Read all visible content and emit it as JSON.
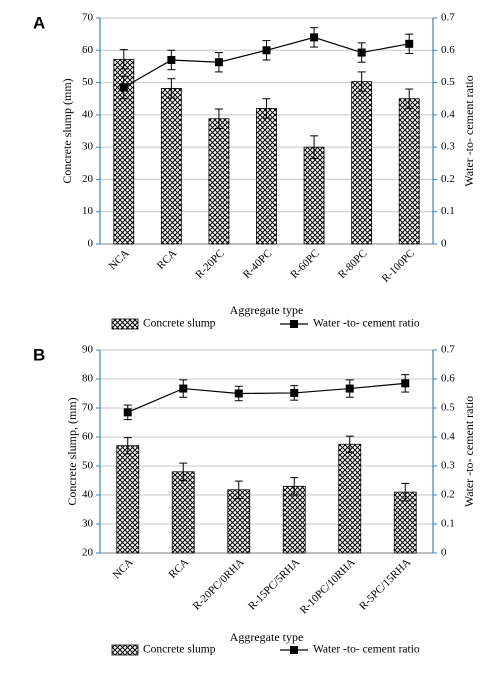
{
  "chart_data": [
    {
      "panel": "A",
      "type": "bar",
      "title": "",
      "xlabel": "Aggregate type",
      "ylabel": "Concrete slump (mm)",
      "y2label": "Water -to- cement ratio",
      "categories": [
        "NCA",
        "RCA",
        "R-20PC",
        "R-40PC",
        "R-60PC",
        "R-80PC",
        "R-100PC"
      ],
      "ylim": [
        0,
        70
      ],
      "yticks": [
        0,
        10,
        20,
        30,
        40,
        50,
        60,
        70
      ],
      "y2lim": [
        0,
        0.7
      ],
      "y2ticks": [
        "0",
        "0.1",
        "0.2",
        "0.3",
        "0.4",
        "0.5",
        "0.6",
        "0.7"
      ],
      "series": [
        {
          "name": "Concrete slump",
          "kind": "bar",
          "axis": "left",
          "values": [
            57.2,
            48.2,
            38.8,
            42.0,
            30.0,
            50.3,
            45.0
          ],
          "errors": [
            3.0,
            3.0,
            3.0,
            3.0,
            3.5,
            3.0,
            3.0
          ]
        },
        {
          "name": "Water -to- cement ratio",
          "kind": "line",
          "axis": "right",
          "values": [
            0.485,
            0.57,
            0.563,
            0.6,
            0.64,
            0.593,
            0.62
          ],
          "errors": [
            0.035,
            0.03,
            0.03,
            0.03,
            0.03,
            0.03,
            0.03
          ]
        }
      ],
      "legend": "bottom"
    },
    {
      "panel": "B",
      "type": "bar",
      "title": "",
      "xlabel": "Aggregate type",
      "ylabel": "Concrete slump, (mm)",
      "y2label": "Water -to- cement ratio",
      "categories": [
        "NCA",
        "RCA",
        "R-20PC/0RHA",
        "R-15PC/5RHA",
        "R-10PC/10RHA",
        "R-5PC/15RHA"
      ],
      "ylim": [
        20,
        90
      ],
      "yticks": [
        20,
        30,
        40,
        50,
        60,
        70,
        80,
        90
      ],
      "y2lim": [
        0,
        0.7
      ],
      "y2ticks": [
        "0",
        "0.1",
        "0.2",
        "0.3",
        "0.4",
        "0.5",
        "0.6",
        "0.7"
      ],
      "series": [
        {
          "name": "Concrete slump",
          "kind": "bar",
          "axis": "left",
          "values": [
            57.0,
            48.0,
            41.8,
            43.0,
            57.5,
            41.0
          ],
          "errors": [
            2.8,
            3.0,
            3.0,
            3.0,
            2.8,
            3.0
          ]
        },
        {
          "name": "Water -to- cement ratio",
          "kind": "line",
          "axis": "right",
          "values": [
            0.485,
            0.567,
            0.55,
            0.552,
            0.567,
            0.585
          ],
          "errors": [
            0.025,
            0.03,
            0.025,
            0.025,
            0.03,
            0.03
          ]
        }
      ],
      "legend": "bottom"
    }
  ]
}
